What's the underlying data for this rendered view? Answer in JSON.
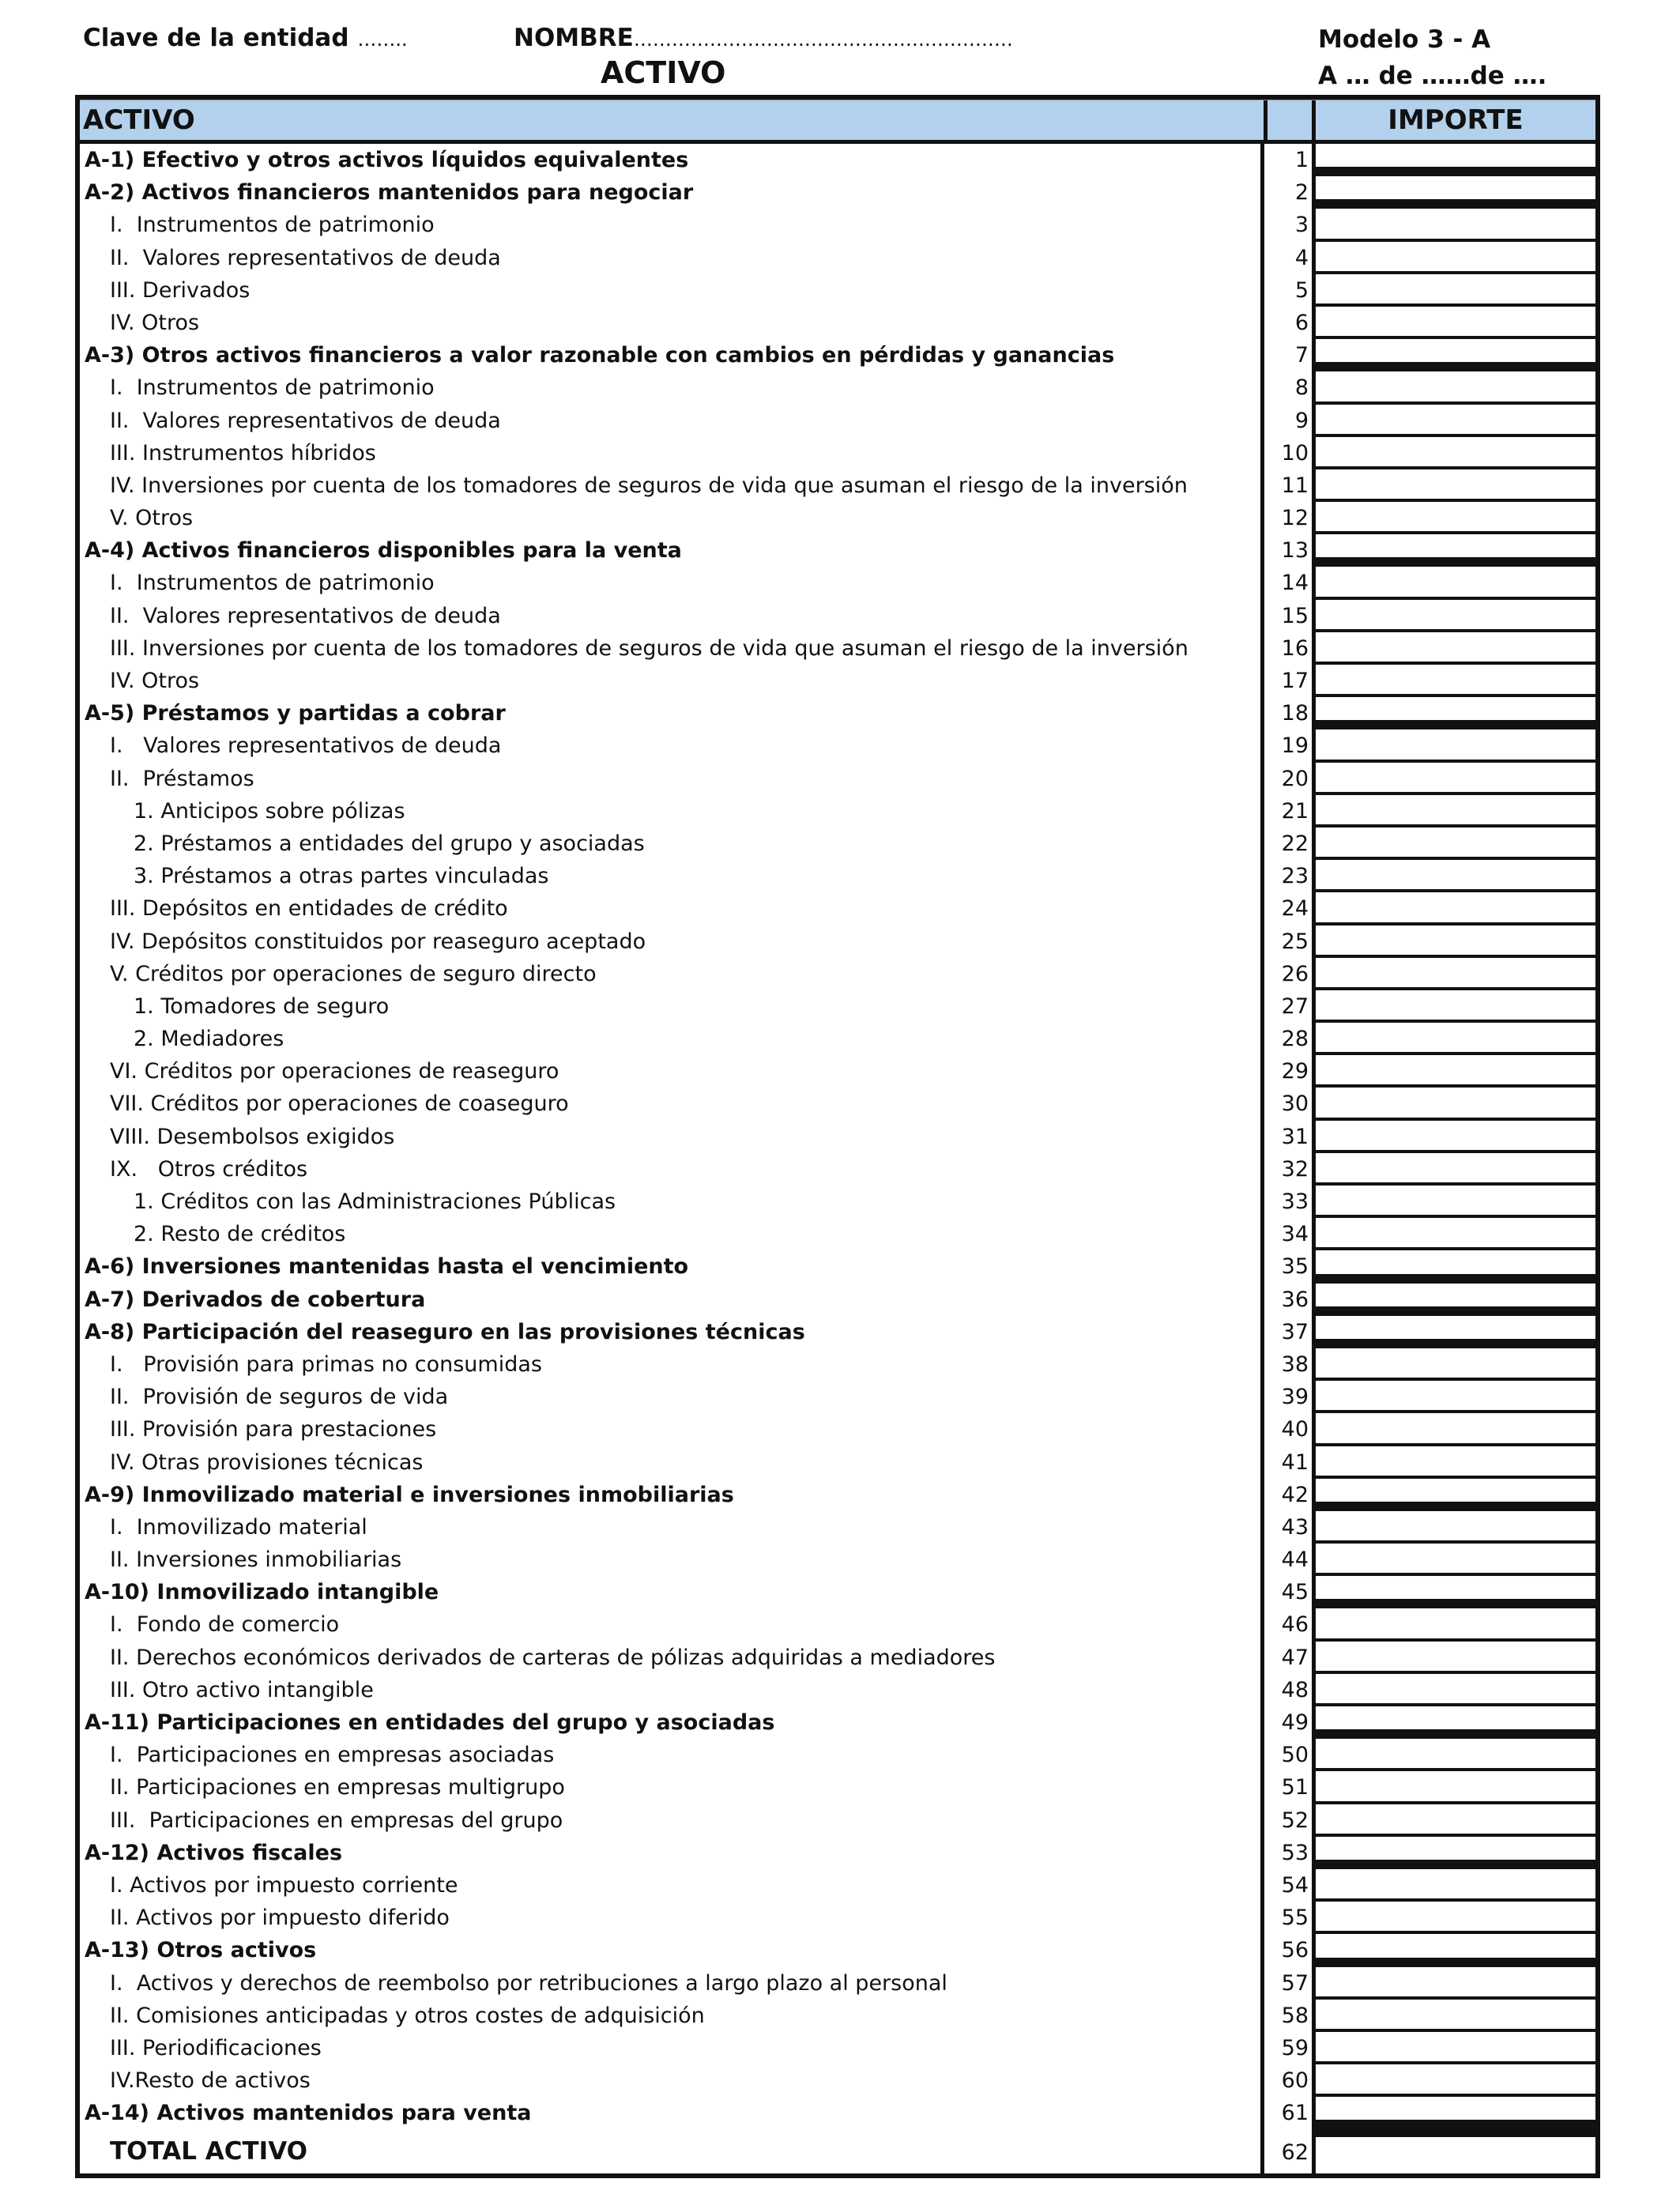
{
  "header": {
    "clave_label": "Clave de la entidad",
    "clave_dots": "……..",
    "nombre_label": "NOMBRE",
    "nombre_dots": "……………………………………………………",
    "modelo": "Modelo 3 - A",
    "title": "ACTIVO",
    "fecha": "A … de ……de …."
  },
  "table": {
    "col_activo": "ACTIVO",
    "col_importe": "IMPORTE",
    "rows": [
      {
        "text": "A-1) Efectivo y otros activos líquidos equivalentes",
        "num": "1",
        "level": 0,
        "bold": true
      },
      {
        "text": "A-2) Activos financieros mantenidos para negociar",
        "num": "2",
        "level": 0,
        "bold": true
      },
      {
        "text": "I.  Instrumentos de patrimonio",
        "num": "3",
        "level": 1,
        "bold": false
      },
      {
        "text": "II.  Valores representativos de deuda",
        "num": "4",
        "level": 1,
        "bold": false
      },
      {
        "text": "III. Derivados",
        "num": "5",
        "level": 1,
        "bold": false
      },
      {
        "text": "IV. Otros",
        "num": "6",
        "level": 1,
        "bold": false
      },
      {
        "text": "A-3) Otros activos financieros a valor razonable con cambios en pérdidas y ganancias",
        "num": "7",
        "level": 0,
        "bold": true
      },
      {
        "text": "I.  Instrumentos de patrimonio",
        "num": "8",
        "level": 1,
        "bold": false
      },
      {
        "text": "II.  Valores representativos de deuda",
        "num": "9",
        "level": 1,
        "bold": false
      },
      {
        "text": "III. Instrumentos híbridos",
        "num": "10",
        "level": 1,
        "bold": false
      },
      {
        "text": "IV. Inversiones por cuenta de los tomadores de seguros de vida que asuman el riesgo de la inversión",
        "num": "11",
        "level": 1,
        "bold": false
      },
      {
        "text": "V. Otros",
        "num": "12",
        "level": 1,
        "bold": false
      },
      {
        "text": "A-4) Activos financieros disponibles para la venta",
        "num": "13",
        "level": 0,
        "bold": true
      },
      {
        "text": "I.  Instrumentos de patrimonio",
        "num": "14",
        "level": 1,
        "bold": false
      },
      {
        "text": "II.  Valores representativos de deuda",
        "num": "15",
        "level": 1,
        "bold": false
      },
      {
        "text": "III. Inversiones por cuenta de los tomadores de seguros de vida que asuman el riesgo de la inversión",
        "num": "16",
        "level": 1,
        "bold": false
      },
      {
        "text": "IV. Otros",
        "num": "17",
        "level": 1,
        "bold": false
      },
      {
        "text": "A-5) Préstamos y partidas a cobrar",
        "num": "18",
        "level": 0,
        "bold": true
      },
      {
        "text": "I.   Valores representativos de deuda",
        "num": "19",
        "level": 1,
        "bold": false
      },
      {
        "text": "II.  Préstamos",
        "num": "20",
        "level": 1,
        "bold": false
      },
      {
        "text": "1. Anticipos sobre pólizas",
        "num": "21",
        "level": 2,
        "bold": false
      },
      {
        "text": "2. Préstamos a entidades del grupo y asociadas",
        "num": "22",
        "level": 2,
        "bold": false
      },
      {
        "text": "3. Préstamos a otras partes vinculadas",
        "num": "23",
        "level": 2,
        "bold": false
      },
      {
        "text": "III. Depósitos en entidades de crédito",
        "num": "24",
        "level": 1,
        "bold": false
      },
      {
        "text": "IV. Depósitos constituidos por reaseguro aceptado",
        "num": "25",
        "level": 1,
        "bold": false
      },
      {
        "text": "V. Créditos por operaciones de seguro directo",
        "num": "26",
        "level": 1,
        "bold": false
      },
      {
        "text": "1. Tomadores de seguro",
        "num": "27",
        "level": 2,
        "bold": false
      },
      {
        "text": "2. Mediadores",
        "num": "28",
        "level": 2,
        "bold": false
      },
      {
        "text": "VI. Créditos por operaciones de reaseguro",
        "num": "29",
        "level": 1,
        "bold": false
      },
      {
        "text": "VII. Créditos por operaciones de coaseguro",
        "num": "30",
        "level": 1,
        "bold": false
      },
      {
        "text": "VIII. Desembolsos exigidos",
        "num": "31",
        "level": 1,
        "bold": false
      },
      {
        "text": "IX.   Otros créditos",
        "num": "32",
        "level": 1,
        "bold": false
      },
      {
        "text": "1. Créditos con las Administraciones Públicas",
        "num": "33",
        "level": 2,
        "bold": false
      },
      {
        "text": "2. Resto de créditos",
        "num": "34",
        "level": 2,
        "bold": false
      },
      {
        "text": "A-6) Inversiones mantenidas hasta el vencimiento",
        "num": "35",
        "level": 0,
        "bold": true
      },
      {
        "text": "A-7) Derivados de cobertura",
        "num": "36",
        "level": 0,
        "bold": true
      },
      {
        "text": "A-8) Participación del reaseguro en las provisiones técnicas",
        "num": "37",
        "level": 0,
        "bold": true
      },
      {
        "text": "I.   Provisión para primas no consumidas",
        "num": "38",
        "level": 1,
        "bold": false
      },
      {
        "text": "II.  Provisión de seguros de vida",
        "num": "39",
        "level": 1,
        "bold": false
      },
      {
        "text": "III. Provisión para prestaciones",
        "num": "40",
        "level": 1,
        "bold": false
      },
      {
        "text": "IV. Otras provisiones técnicas",
        "num": "41",
        "level": 1,
        "bold": false
      },
      {
        "text": "A-9) Inmovilizado material e inversiones inmobiliarias",
        "num": "42",
        "level": 0,
        "bold": true
      },
      {
        "text": "I.  Inmovilizado material",
        "num": "43",
        "level": 1,
        "bold": false
      },
      {
        "text": "II. Inversiones inmobiliarias",
        "num": "44",
        "level": 1,
        "bold": false
      },
      {
        "text": "A-10) Inmovilizado intangible",
        "num": "45",
        "level": 0,
        "bold": true
      },
      {
        "text": "I.  Fondo de comercio",
        "num": "46",
        "level": 1,
        "bold": false
      },
      {
        "text": "II. Derechos económicos derivados de carteras de pólizas adquiridas a mediadores",
        "num": "47",
        "level": 1,
        "bold": false
      },
      {
        "text": "III. Otro activo intangible",
        "num": "48",
        "level": 1,
        "bold": false
      },
      {
        "text": "A-11) Participaciones en entidades del grupo y asociadas",
        "num": "49",
        "level": 0,
        "bold": true
      },
      {
        "text": "I.  Participaciones en empresas asociadas",
        "num": "50",
        "level": 1,
        "bold": false
      },
      {
        "text": "II. Participaciones en empresas multigrupo",
        "num": "51",
        "level": 1,
        "bold": false
      },
      {
        "text": "III.  Participaciones en empresas del grupo",
        "num": "52",
        "level": 1,
        "bold": false
      },
      {
        "text": "A-12) Activos fiscales",
        "num": "53",
        "level": 0,
        "bold": true
      },
      {
        "text": "I. Activos por impuesto corriente",
        "num": "54",
        "level": 1,
        "bold": false
      },
      {
        "text": "II. Activos por impuesto diferido",
        "num": "55",
        "level": 1,
        "bold": false
      },
      {
        "text": "A-13) Otros activos",
        "num": "56",
        "level": 0,
        "bold": true
      },
      {
        "text": "I.  Activos y derechos de reembolso por retribuciones a largo plazo al personal",
        "num": "57",
        "level": 1,
        "bold": false
      },
      {
        "text": "II. Comisiones anticipadas y otros costes de adquisición",
        "num": "58",
        "level": 1,
        "bold": false
      },
      {
        "text": "III. Periodificaciones",
        "num": "59",
        "level": 1,
        "bold": false
      },
      {
        "text": "IV.Resto de activos",
        "num": "60",
        "level": 1,
        "bold": false
      },
      {
        "text": "A-14) Activos mantenidos para venta",
        "num": "61",
        "level": 0,
        "bold": true
      },
      {
        "text": "TOTAL ACTIVO",
        "num": "62",
        "level": 1,
        "bold": true,
        "total": true
      }
    ]
  }
}
